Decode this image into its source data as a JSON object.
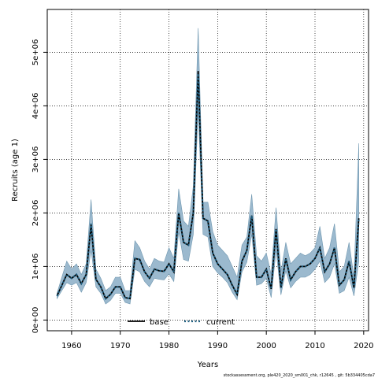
{
  "chart_data": {
    "type": "line",
    "title": "",
    "xlabel": "Years",
    "ylabel": "Recruits (age 1)",
    "xlim": [
      1955,
      2021
    ],
    "ylim": [
      -200000,
      5800000
    ],
    "x_ticks": [
      1960,
      1970,
      1980,
      1990,
      2000,
      2010,
      2020
    ],
    "x_tick_labels": [
      "1960",
      "1970",
      "1980",
      "1990",
      "2000",
      "2010",
      "2020"
    ],
    "y_ticks": [
      0,
      1000000,
      2000000,
      3000000,
      4000000,
      5000000
    ],
    "y_tick_labels": [
      "0e+00",
      "1e+06",
      "2e+06",
      "3e+06",
      "4e+06",
      "5e+06"
    ],
    "grid": true,
    "legend_position": "bottom-center",
    "years": [
      1957,
      1958,
      1959,
      1960,
      1961,
      1962,
      1963,
      1964,
      1965,
      1966,
      1967,
      1968,
      1969,
      1970,
      1971,
      1972,
      1973,
      1974,
      1975,
      1976,
      1977,
      1978,
      1979,
      1980,
      1981,
      1982,
      1983,
      1984,
      1985,
      1986,
      1987,
      1988,
      1989,
      1990,
      1991,
      1992,
      1993,
      1994,
      1995,
      1996,
      1997,
      1998,
      1999,
      2000,
      2001,
      2002,
      2003,
      2004,
      2005,
      2006,
      2007,
      2008,
      2009,
      2010,
      2011,
      2012,
      2013,
      2014,
      2015,
      2016,
      2017,
      2018,
      2019
    ],
    "series": [
      {
        "name": "base",
        "style": "solid",
        "color": "#000000",
        "values": [
          450000,
          650000,
          850000,
          780000,
          850000,
          680000,
          850000,
          1780000,
          760000,
          620000,
          400000,
          480000,
          620000,
          620000,
          420000,
          400000,
          1150000,
          1130000,
          900000,
          780000,
          950000,
          920000,
          910000,
          1050000,
          900000,
          2000000,
          1450000,
          1400000,
          2000000,
          4650000,
          1900000,
          1850000,
          1250000,
          1050000,
          950000,
          850000,
          650000,
          480000,
          1100000,
          1300000,
          1950000,
          800000,
          800000,
          950000,
          580000,
          1700000,
          600000,
          1150000,
          750000,
          900000,
          1000000,
          1000000,
          1050000,
          1150000,
          1350000,
          900000,
          1050000,
          1350000,
          650000,
          750000,
          1100000,
          600000,
          1900000
        ]
      },
      {
        "name": "current",
        "style": "dotted",
        "color": "#1f5f80",
        "values": [
          450000,
          650000,
          850000,
          780000,
          850000,
          680000,
          850000,
          1800000,
          760000,
          620000,
          400000,
          480000,
          620000,
          620000,
          420000,
          400000,
          1150000,
          1130000,
          900000,
          780000,
          950000,
          920000,
          910000,
          1050000,
          900000,
          2000000,
          1450000,
          1400000,
          2000000,
          4600000,
          1900000,
          1850000,
          1250000,
          1050000,
          950000,
          850000,
          650000,
          480000,
          1100000,
          1300000,
          1950000,
          800000,
          800000,
          950000,
          580000,
          1700000,
          600000,
          1150000,
          750000,
          900000,
          1000000,
          1000000,
          1050000,
          1150000,
          1350000,
          900000,
          1050000,
          1350000,
          650000,
          750000,
          1100000,
          600000,
          1900000
        ]
      }
    ],
    "band": {
      "color": "#9bb9ce",
      "upper": [
        500000,
        800000,
        1100000,
        950000,
        1050000,
        850000,
        1050000,
        2250000,
        950000,
        780000,
        550000,
        620000,
        800000,
        800000,
        550000,
        550000,
        1480000,
        1350000,
        1100000,
        950000,
        1150000,
        1100000,
        1080000,
        1350000,
        1150000,
        2450000,
        1850000,
        1750000,
        2500000,
        5450000,
        2200000,
        2200000,
        1650000,
        1400000,
        1300000,
        1200000,
        1000000,
        800000,
        1400000,
        1550000,
        2350000,
        1200000,
        1100000,
        1250000,
        850000,
        2100000,
        900000,
        1450000,
        1050000,
        1150000,
        1250000,
        1200000,
        1250000,
        1350000,
        1750000,
        1150000,
        1350000,
        1800000,
        900000,
        1000000,
        1450000,
        800000,
        3300000
      ],
      "lower": [
        400000,
        550000,
        700000,
        650000,
        700000,
        520000,
        700000,
        1300000,
        620000,
        500000,
        300000,
        370000,
        500000,
        500000,
        330000,
        300000,
        950000,
        900000,
        720000,
        620000,
        780000,
        760000,
        750000,
        860000,
        720000,
        1650000,
        1130000,
        1100000,
        1600000,
        3950000,
        1600000,
        1550000,
        1000000,
        880000,
        800000,
        700000,
        520000,
        380000,
        900000,
        1080000,
        1600000,
        650000,
        680000,
        780000,
        420000,
        1300000,
        470000,
        920000,
        600000,
        720000,
        800000,
        800000,
        850000,
        950000,
        1100000,
        700000,
        800000,
        1050000,
        500000,
        550000,
        800000,
        450000,
        1100000
      ]
    },
    "footer": "stockassessment.org,  ple420_2020_sm001_chk,  r12645 ,  git:  5b334405cda7"
  }
}
